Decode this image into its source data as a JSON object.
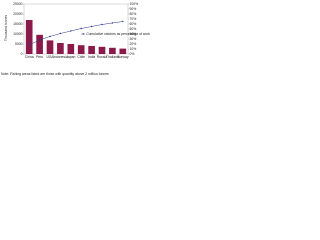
{
  "chart_data": {
    "type": "bar",
    "y_label": "Thousand tonnes",
    "categories": [
      "China",
      "Peru",
      "USA",
      "Indonesia",
      "Japan",
      "Chile",
      "India",
      "Russia",
      "Thailand",
      "Norway"
    ],
    "series": [
      {
        "color": "#8b1a4a",
        "values": [
          17000,
          9600,
          6800,
          5500,
          5000,
          4400,
          4000,
          3600,
          3100,
          2700
        ]
      },
      {
        "name": "Cumulative catches as percentage of world total",
        "color": "#2a3a8c",
        "axis": "y2",
        "values": [
          18,
          28,
          35,
          41,
          46,
          51,
          55,
          59,
          62,
          65
        ]
      }
    ],
    "ylim": [
      0,
      25000
    ],
    "yticks": [
      0,
      5000,
      10000,
      15000,
      20000,
      25000
    ],
    "y2lim": [
      0,
      100
    ],
    "y2ticks": [
      {
        "value": 0,
        "label": "0%"
      },
      {
        "value": 10,
        "label": "10%"
      },
      {
        "value": 20,
        "label": "20%"
      },
      {
        "value": 30,
        "label": "30%"
      },
      {
        "value": 40,
        "label": "40%"
      },
      {
        "value": 50,
        "label": "50%"
      },
      {
        "value": 60,
        "label": "60%"
      },
      {
        "value": 70,
        "label": "70%"
      },
      {
        "value": 80,
        "label": "80%"
      },
      {
        "value": 90,
        "label": "90%"
      },
      {
        "value": 100,
        "label": "100%"
      }
    ],
    "note": "Note: Fishing areas listed are those with quantity above 2 million tonnes"
  }
}
